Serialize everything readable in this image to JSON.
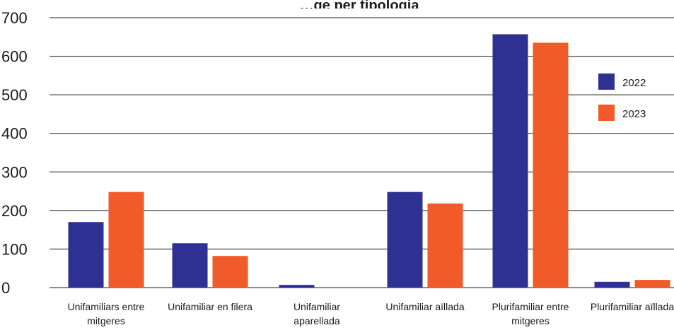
{
  "chart_data": {
    "type": "bar",
    "title": "…ge per tipologia",
    "categories": [
      [
        "Unifamiliars entre",
        "mitgeres"
      ],
      [
        "Unifamiliar en filera"
      ],
      [
        "Unifamiliar",
        "aparellada"
      ],
      [
        "Unifamiliar aïllada"
      ],
      [
        "Plurifamiliar entre",
        "mitgeres"
      ],
      [
        "Plurifamiliar aïllada"
      ]
    ],
    "series": [
      {
        "name": "2022",
        "color": "#2e3192",
        "values": [
          170,
          115,
          7,
          248,
          657,
          15
        ]
      },
      {
        "name": "2023",
        "color": "#f15a29",
        "values": [
          248,
          82,
          0,
          218,
          635,
          20
        ]
      }
    ],
    "yticks": [
      "0",
      "100",
      "200",
      "300",
      "400",
      "500",
      "600",
      "700"
    ],
    "ylim": [
      0,
      700
    ],
    "grid": true,
    "legend": "right"
  }
}
